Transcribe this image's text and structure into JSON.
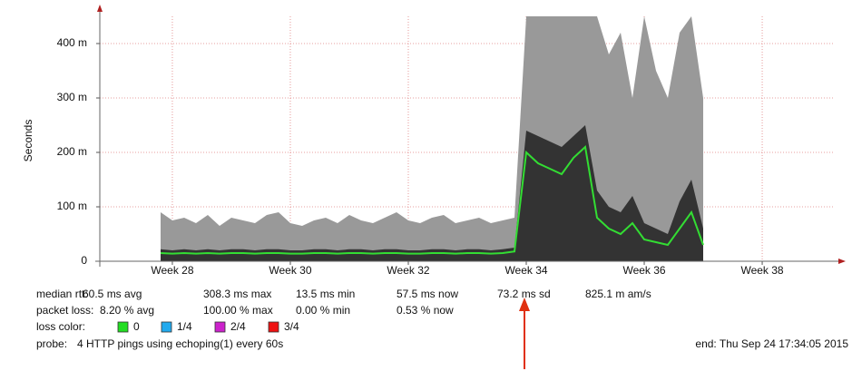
{
  "chart_data": {
    "type": "smoke",
    "y_label": "Seconds",
    "x": [
      27.8,
      28.0,
      28.2,
      28.4,
      28.6,
      28.8,
      29.0,
      29.2,
      29.4,
      29.6,
      29.8,
      30.0,
      30.2,
      30.4,
      30.6,
      30.8,
      31.0,
      31.2,
      31.4,
      31.6,
      31.8,
      32.0,
      32.2,
      32.4,
      32.6,
      32.8,
      33.0,
      33.2,
      33.4,
      33.6,
      33.8,
      34.0,
      34.2,
      34.4,
      34.6,
      34.8,
      35.0,
      35.2,
      35.4,
      35.6,
      35.8,
      36.0,
      36.2,
      36.4,
      36.6,
      36.8,
      37.0
    ],
    "series": [
      {
        "color": "#999999",
        "values": [
          90,
          75,
          80,
          70,
          85,
          65,
          80,
          75,
          70,
          85,
          90,
          70,
          65,
          75,
          80,
          70,
          85,
          75,
          70,
          80,
          90,
          75,
          70,
          80,
          85,
          70,
          75,
          80,
          70,
          75,
          80,
          450,
          450,
          450,
          450,
          450,
          450,
          450,
          380,
          420,
          300,
          450,
          350,
          300,
          420,
          450,
          300
        ]
      },
      {
        "color": "#333333",
        "values": [
          22,
          20,
          22,
          20,
          22,
          20,
          22,
          22,
          20,
          22,
          22,
          20,
          20,
          22,
          22,
          20,
          22,
          22,
          20,
          22,
          22,
          20,
          20,
          22,
          22,
          20,
          22,
          22,
          20,
          22,
          25,
          240,
          230,
          220,
          210,
          230,
          250,
          130,
          100,
          90,
          120,
          70,
          60,
          50,
          110,
          150,
          60
        ]
      },
      {
        "color": "#33dd33",
        "values": [
          15,
          14,
          15,
          14,
          15,
          14,
          15,
          15,
          14,
          15,
          15,
          14,
          14,
          15,
          15,
          14,
          15,
          15,
          14,
          15,
          15,
          14,
          14,
          15,
          15,
          14,
          15,
          15,
          14,
          15,
          18,
          200,
          180,
          170,
          160,
          190,
          210,
          80,
          60,
          50,
          70,
          40,
          35,
          30,
          60,
          90,
          30
        ]
      }
    ],
    "xlim": [
      26.77,
      39.23
    ],
    "xticks": [
      {
        "value": 28,
        "label": "Week 28"
      },
      {
        "value": 30,
        "label": "Week 30"
      },
      {
        "value": 32,
        "label": "Week 32"
      },
      {
        "value": 34,
        "label": "Week 34"
      },
      {
        "value": 36,
        "label": "Week 36"
      },
      {
        "value": 38,
        "label": "Week 38"
      }
    ],
    "ylim": [
      0,
      450
    ],
    "yticks": [
      0,
      {
        "value": 100,
        "label": "100 m"
      },
      {
        "value": 200,
        "label": "200 m"
      },
      {
        "value": 300,
        "label": "300 m"
      },
      {
        "value": 400,
        "label": "400 m"
      }
    ],
    "grid": true
  },
  "legend": {
    "median": {
      "label": "median rtt:",
      "items": [
        "60.5 ms avg",
        "308.3 ms max",
        "13.5 ms min",
        "57.5 ms now",
        "73.2 ms sd",
        "825.1 m am/s"
      ]
    },
    "loss": {
      "label": "packet loss:",
      "items": [
        "8.20 % avg",
        "100.00 % max",
        "0.00 % min",
        "0.53 % now"
      ]
    },
    "loss_color": {
      "label": "loss color:",
      "items": [
        {
          "label": "0",
          "color": "#22dd22"
        },
        {
          "label": "1/4",
          "color": "#22aaee"
        },
        {
          "label": "2/4",
          "color": "#cc22cc"
        },
        {
          "label": "3/4",
          "color": "#ee1111"
        }
      ]
    },
    "probe": {
      "label": "probe:",
      "text": "4 HTTP pings using echoping(1) every 60s"
    },
    "end": "end: Thu Sep 24 17:34:05 2015"
  }
}
